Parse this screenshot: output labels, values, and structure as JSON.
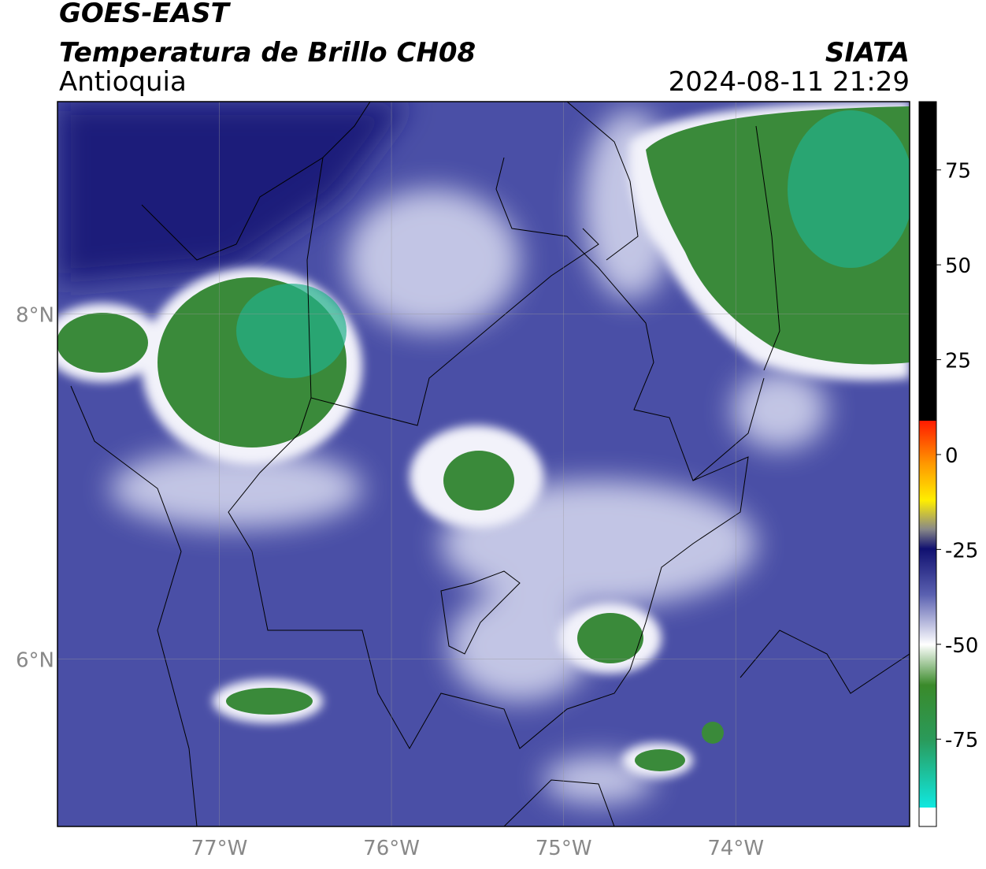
{
  "header": {
    "title": "GOES-EAST",
    "subtitle": "Temperatura de Brillo CH08",
    "region": "Antioquia",
    "source": "SIATA",
    "datetime": "2024-08-11 21:29"
  },
  "map": {
    "lon_range": [
      -77.94,
      -72.99
    ],
    "lat_range": [
      5.03,
      9.23
    ],
    "lon_ticks": [
      {
        "value": -77,
        "label": "77°W"
      },
      {
        "value": -76,
        "label": "76°W"
      },
      {
        "value": -75,
        "label": "75°W"
      },
      {
        "value": -74,
        "label": "74°W"
      }
    ],
    "lat_ticks": [
      {
        "value": 8,
        "label": "8°N"
      },
      {
        "value": 6,
        "label": "6°N"
      }
    ]
  },
  "colorbar": {
    "range": [
      -98,
      93
    ],
    "ticks": [
      75,
      50,
      25,
      0,
      -25,
      -50,
      -75
    ]
  }
}
